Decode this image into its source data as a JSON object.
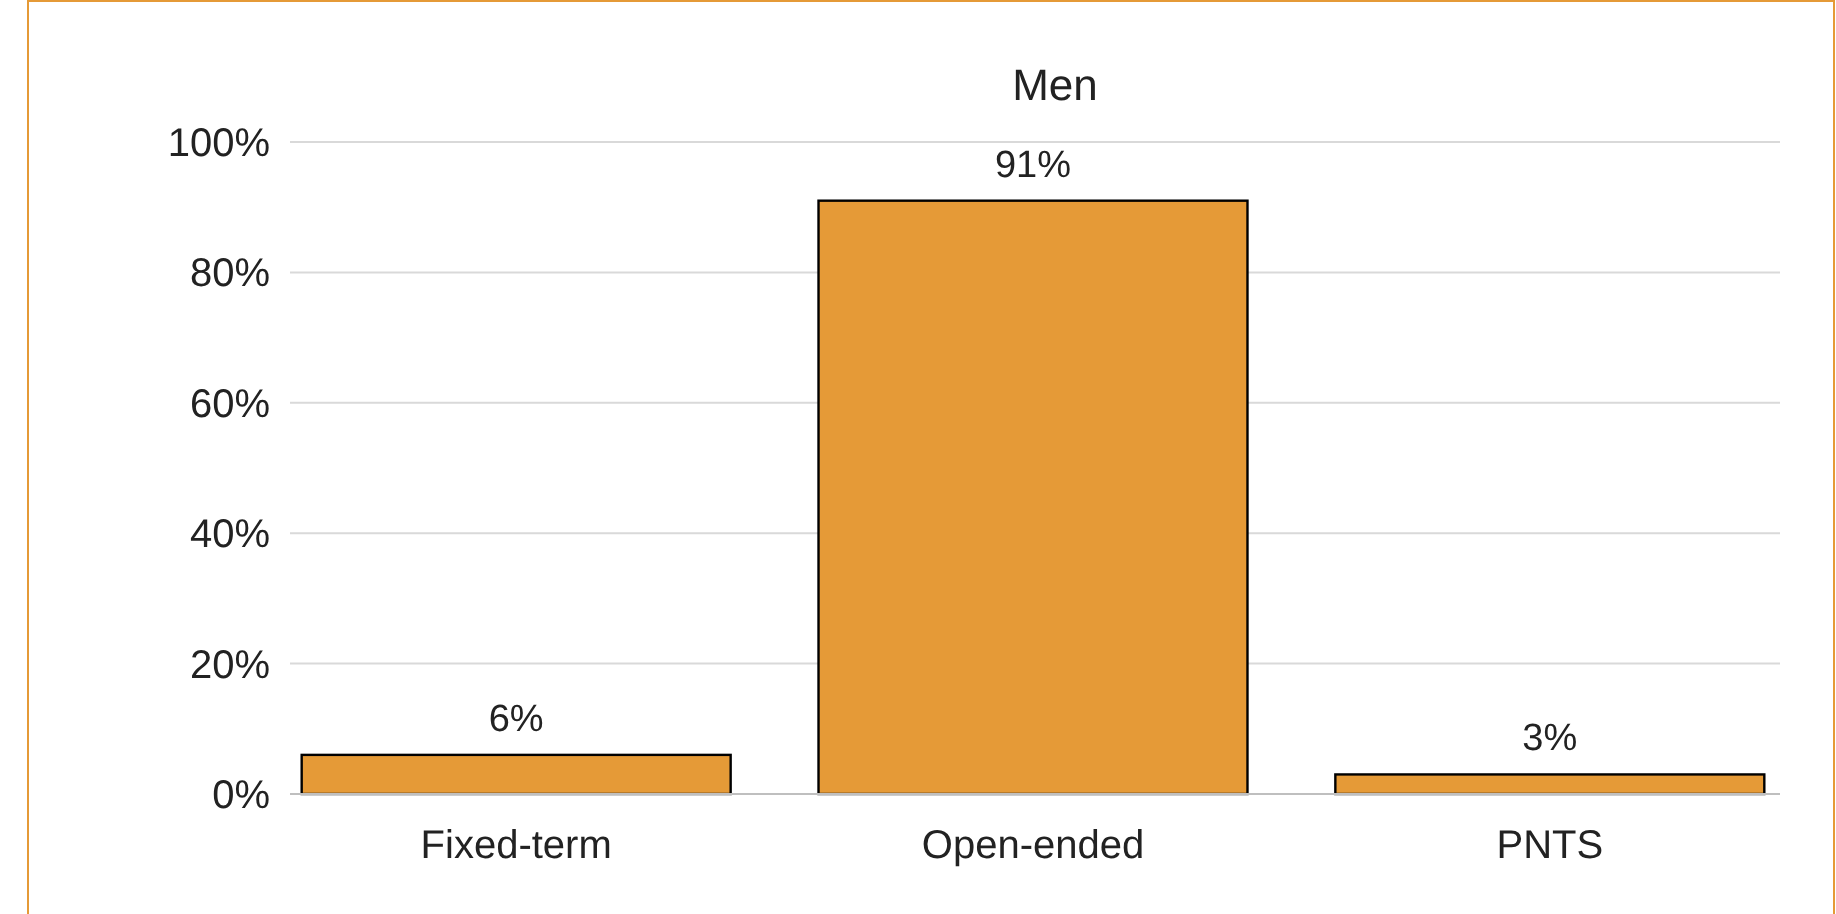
{
  "chart_data": {
    "type": "bar",
    "title": "Men",
    "categories": [
      "Fixed-term",
      "Open-ended",
      "PNTS"
    ],
    "values": [
      6,
      91,
      3
    ],
    "value_labels": [
      "6%",
      "91%",
      "3%"
    ],
    "color": "#e59a37",
    "ylim": [
      0,
      100
    ],
    "yticks": [
      {
        "value": 0,
        "label": "0%"
      },
      {
        "value": 20,
        "label": "20%"
      },
      {
        "value": 40,
        "label": "40%"
      },
      {
        "value": 60,
        "label": "60%"
      },
      {
        "value": 80,
        "label": "80%"
      },
      {
        "value": 100,
        "label": "100%"
      }
    ],
    "grid": "y"
  }
}
